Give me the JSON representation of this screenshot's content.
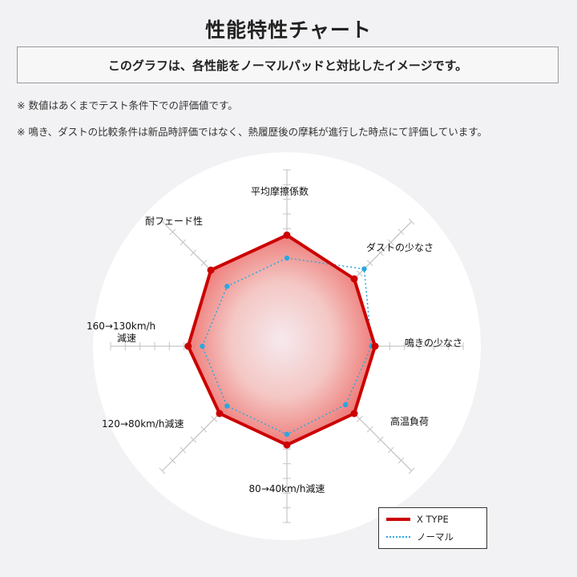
{
  "page": {
    "title": "性能特性チャート",
    "subtitle": "このグラフは、各性能をノーマルパッドと対比したイメージです。",
    "notes": [
      "※ 数値はあくまでテスト条件下での評価値です。",
      "※ 鳴き、ダストの比較条件は新品時評価ではなく、熱履歴後の摩耗が進行した時点にて評価しています。"
    ]
  },
  "chart_data": {
    "type": "radar",
    "axes": [
      "平均摩擦係数",
      "ダストの少なさ",
      "鳴きの少なさ",
      "高温負荷",
      "80→40km/h減速",
      "120→80km/h減速",
      "160→130km/h減速",
      "耐フェード性"
    ],
    "range": [
      0,
      10
    ],
    "grid": true,
    "legend_position": "bottom-right",
    "series": [
      {
        "name": "X TYPE",
        "values": [
          6.3,
          5.4,
          5.0,
          5.4,
          5.6,
          5.4,
          5.6,
          6.1
        ],
        "color": "#cc0000",
        "style": "solid"
      },
      {
        "name": "ノーマル",
        "values": [
          5.0,
          6.2,
          4.8,
          4.7,
          5.0,
          4.8,
          4.8,
          4.8
        ],
        "color": "#2aa7e0",
        "style": "dotted"
      }
    ]
  }
}
